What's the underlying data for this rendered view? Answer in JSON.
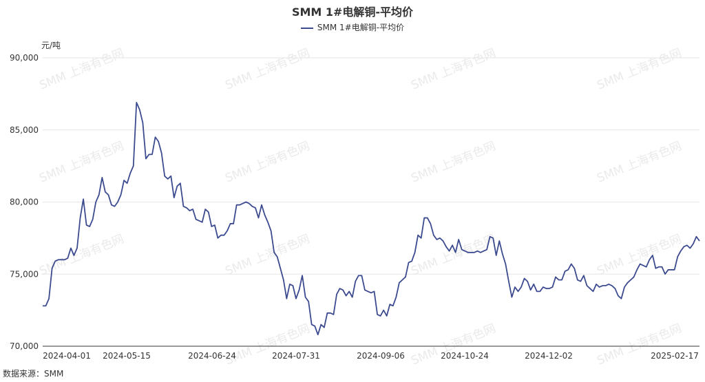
{
  "title": "SMM 1#电解铜-平均价",
  "unit_label": "元/吨",
  "source": "数据来源：SMM",
  "watermark": "SMM 上海有色网",
  "colors": {
    "line": "#3b4a8f",
    "grid": "#e6e6e6",
    "axis": "#333333"
  },
  "chart_data": {
    "type": "line",
    "title": "SMM 1#电解铜-平均价",
    "ylabel": "元/吨",
    "ylim": [
      70000,
      90000
    ],
    "y_ticks": [
      "70,000",
      "75,000",
      "80,000",
      "85,000",
      "90,000"
    ],
    "x_ticks": [
      "2024-04-01",
      "2024-05-15",
      "2024-06-24",
      "2024-07-31",
      "2024-09-06",
      "2024-10-24",
      "2024-12-02",
      "2025-02-17"
    ],
    "grid": true,
    "legend_position": "top-center",
    "series": [
      {
        "name": "SMM 1#电解铜-平均价",
        "values": [
          72800,
          72800,
          73300,
          75400,
          75900,
          76000,
          76000,
          76000,
          76100,
          76800,
          76300,
          76800,
          78900,
          80200,
          78400,
          78300,
          78800,
          80000,
          80500,
          81700,
          80700,
          80500,
          79800,
          79700,
          80000,
          80500,
          81500,
          81300,
          82000,
          82500,
          86900,
          86400,
          85500,
          83000,
          83300,
          83300,
          84500,
          84200,
          83400,
          81800,
          81600,
          81800,
          80300,
          81100,
          81300,
          79700,
          79600,
          79400,
          79500,
          78800,
          78700,
          78600,
          79500,
          79300,
          78300,
          78400,
          77500,
          77700,
          77700,
          78000,
          78500,
          78500,
          79800,
          79800,
          79900,
          80000,
          79900,
          79700,
          79600,
          78900,
          79800,
          79100,
          78600,
          78000,
          76500,
          76200,
          75400,
          74600,
          73300,
          74300,
          74200,
          73300,
          73900,
          74900,
          73400,
          73100,
          71500,
          71400,
          70800,
          71500,
          71300,
          72300,
          72300,
          72200,
          73600,
          74000,
          73900,
          73500,
          73800,
          73400,
          74500,
          74900,
          74900,
          73900,
          73800,
          73700,
          73800,
          72200,
          72100,
          72500,
          72100,
          72900,
          72800,
          73400,
          74400,
          74600,
          74800,
          75800,
          75900,
          76500,
          77700,
          77500,
          78900,
          78900,
          78500,
          77700,
          77400,
          77500,
          77300,
          76900,
          76600,
          77000,
          76500,
          77400,
          76700,
          76600,
          76500,
          76500,
          76500,
          76600,
          76500,
          76600,
          76700,
          77600,
          77500,
          76300,
          77300,
          76400,
          75700,
          74500,
          73400,
          74100,
          73800,
          74100,
          74700,
          74500,
          73900,
          74300,
          73800,
          73800,
          74100,
          74000,
          74000,
          74100,
          74800,
          74600,
          74600,
          75200,
          75300,
          75700,
          75400,
          74600,
          74500,
          74900,
          74200,
          74000,
          73800,
          74300,
          74100,
          74200,
          74200,
          74300,
          74200,
          74000,
          73500,
          73300,
          74100,
          74400,
          74600,
          74800,
          75300,
          75700,
          75600,
          75500,
          76000,
          76300,
          75400,
          75500,
          75500,
          75000,
          75300,
          75300,
          75300,
          76200,
          76600,
          76900,
          77000,
          76800,
          77100,
          77600,
          77300
        ]
      }
    ]
  }
}
